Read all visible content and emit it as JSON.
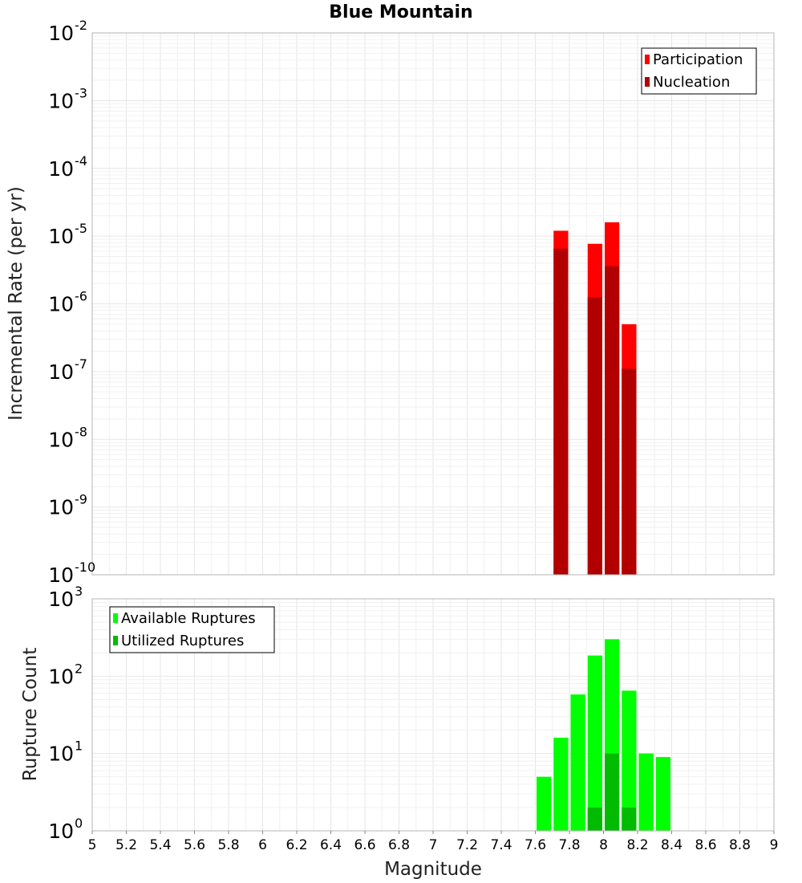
{
  "title": "Blue Mountain",
  "chart_data": [
    {
      "type": "bar",
      "yscale": "log",
      "ylabel": "Incremental Rate (per yr)",
      "xlabel": "",
      "ylim_exponents": [
        -10,
        -2
      ],
      "xlim": [
        5,
        9
      ],
      "bin_width": 0.1,
      "x": [
        7.75,
        7.95,
        8.05,
        8.15
      ],
      "series": [
        {
          "name": "Participation",
          "color": "#ff0000",
          "values": [
            1.2e-05,
            7.7e-06,
            1.6e-05,
            5e-07
          ]
        },
        {
          "name": "Nucleation",
          "color": "#b20000",
          "values": [
            6.5e-06,
            1.25e-06,
            3.6e-06,
            1.1e-07
          ]
        }
      ],
      "legend": {
        "position": "top-right",
        "entries": [
          "Participation",
          "Nucleation"
        ]
      }
    },
    {
      "type": "bar",
      "yscale": "log",
      "ylabel": "Rupture Count",
      "xlabel": "Magnitude",
      "ylim_exponents": [
        0,
        3
      ],
      "xlim": [
        5,
        9
      ],
      "bin_width": 0.1,
      "x": [
        7.45,
        7.65,
        7.75,
        7.85,
        7.95,
        8.05,
        8.15,
        8.25,
        8.35
      ],
      "series": [
        {
          "name": "Available Ruptures",
          "color": "#00ff00",
          "values": [
            1,
            5,
            16,
            58,
            185,
            300,
            65,
            10,
            9
          ]
        },
        {
          "name": "Utilized Ruptures",
          "color": "#00bb00",
          "values": [
            0,
            0,
            1,
            0,
            2,
            10,
            2,
            0,
            0
          ]
        }
      ],
      "legend": {
        "position": "top-left",
        "entries": [
          "Available Ruptures",
          "Utilized Ruptures"
        ]
      }
    }
  ],
  "x_ticks": [
    "5",
    "5.2",
    "5.4",
    "5.6",
    "5.8",
    "6",
    "6.2",
    "6.4",
    "6.6",
    "6.8",
    "7",
    "7.2",
    "7.4",
    "7.6",
    "7.8",
    "8",
    "8.2",
    "8.4",
    "8.6",
    "8.8",
    "9"
  ]
}
